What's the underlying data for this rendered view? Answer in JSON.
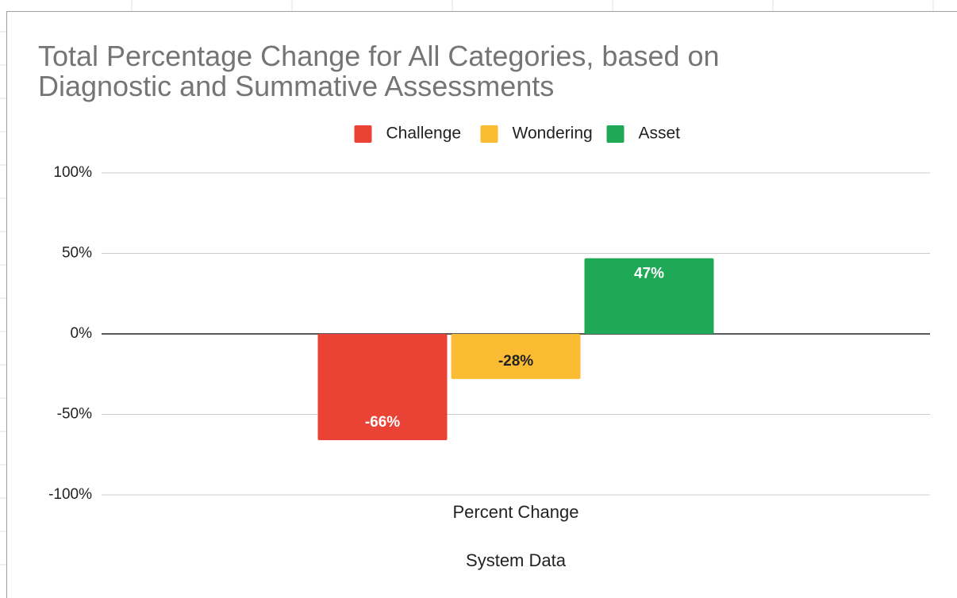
{
  "chart_data": {
    "type": "bar",
    "title": "Total Percentage Change for All Categories, based on Diagnostic and Summative Assessments",
    "x_label": "System Data",
    "categories": [
      "Percent Change"
    ],
    "series": [
      {
        "name": "Challenge",
        "color": "#ea4335",
        "values": [
          -66
        ],
        "value_labels": [
          "-66%"
        ]
      },
      {
        "name": "Wondering",
        "color": "#fbbc34",
        "values": [
          -28
        ],
        "value_labels": [
          "-28%"
        ]
      },
      {
        "name": "Asset",
        "color": "#1fa855",
        "values": [
          47
        ],
        "value_labels": [
          "47%"
        ]
      }
    ],
    "ylim": [
      -100,
      100
    ],
    "yticks": [
      {
        "value": -100,
        "label": "-100%"
      },
      {
        "value": -50,
        "label": "-50%"
      },
      {
        "value": 0,
        "label": "0%"
      },
      {
        "value": 50,
        "label": "50%"
      },
      {
        "value": 100,
        "label": "100%"
      }
    ],
    "grid": true,
    "legend": "top"
  }
}
